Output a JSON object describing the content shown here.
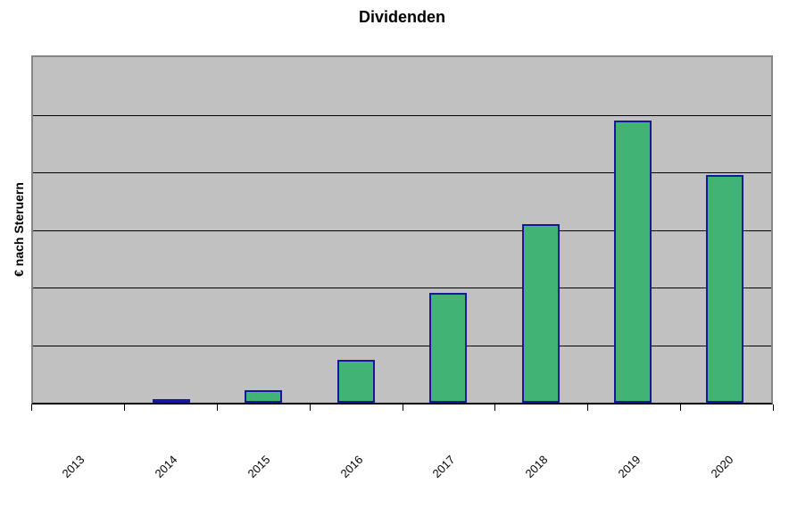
{
  "chart_data": {
    "type": "bar",
    "title": "Dividenden",
    "xlabel": "",
    "ylabel": "€ nach Steruern",
    "categories": [
      "2013",
      "2014",
      "2015",
      "2016",
      "2017",
      "2018",
      "2019",
      "2020"
    ],
    "values": [
      0,
      0.05,
      0.22,
      0.75,
      1.9,
      3.1,
      4.9,
      3.95
    ],
    "values_unit": "gridline divisions (y-axis shows no numeric tick labels)",
    "ylim": [
      0,
      6
    ],
    "grid": "horizontal gridlines, 6 equal divisions",
    "legend": "none",
    "x_tick_label_rotation_deg": 45,
    "series_count": 1
  },
  "colors": {
    "page_bg": "#ffffff",
    "plot_bg": "#c1c1c1",
    "plot_border": "#868686",
    "gridline": "#000000",
    "axis": "#000000",
    "bar_fill": "#41b475",
    "bar_border": "#17179c",
    "text": "#000000"
  }
}
